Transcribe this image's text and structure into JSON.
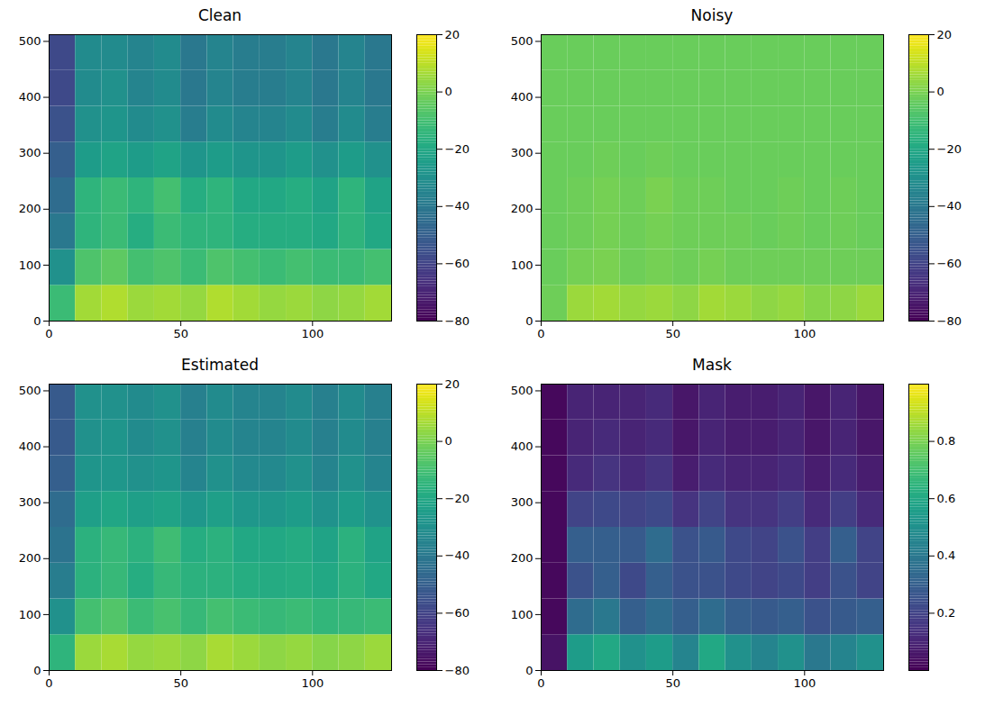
{
  "chart_data": [
    {
      "type": "heatmap",
      "title": "Clean",
      "color": "viridis",
      "xlim": [
        0,
        130
      ],
      "ylim": [
        0,
        512
      ],
      "xticks": [
        0,
        50,
        100
      ],
      "yticks": [
        0,
        100,
        200,
        300,
        400,
        500
      ],
      "x_edges": [
        0,
        10,
        20,
        30,
        40,
        50,
        60,
        70,
        80,
        90,
        100,
        110,
        120,
        130
      ],
      "y_edges": [
        0,
        64,
        128,
        192,
        256,
        320,
        384,
        448,
        512
      ],
      "cells": [
        [
          -12,
          6,
          8,
          5,
          6,
          4,
          8,
          6,
          4,
          5,
          3,
          4,
          6
        ],
        [
          -30,
          -8,
          -5,
          -10,
          -8,
          -12,
          -8,
          -10,
          -12,
          -10,
          -12,
          -12,
          -10
        ],
        [
          -40,
          -15,
          -12,
          -18,
          -12,
          -15,
          -15,
          -18,
          -18,
          -18,
          -20,
          -15,
          -20
        ],
        [
          -45,
          -15,
          -12,
          -15,
          -10,
          -18,
          -15,
          -20,
          -20,
          -18,
          -22,
          -15,
          -22
        ],
        [
          -50,
          -25,
          -22,
          -25,
          -22,
          -28,
          -25,
          -28,
          -28,
          -25,
          -30,
          -25,
          -30
        ],
        [
          -55,
          -30,
          -28,
          -32,
          -30,
          -38,
          -32,
          -35,
          -35,
          -32,
          -38,
          -32,
          -38
        ],
        [
          -58,
          -32,
          -30,
          -35,
          -32,
          -40,
          -35,
          -38,
          -38,
          -35,
          -40,
          -35,
          -40
        ],
        [
          -58,
          -32,
          -32,
          -35,
          -32,
          -40,
          -35,
          -38,
          -38,
          -35,
          -40,
          -35,
          -40
        ]
      ],
      "colorbar": {
        "range": [
          -80,
          20
        ],
        "ticks": [
          20,
          0,
          -20,
          -40,
          -60,
          -80
        ]
      }
    },
    {
      "type": "heatmap",
      "title": "Noisy",
      "color": "viridis",
      "xlim": [
        0,
        130
      ],
      "ylim": [
        0,
        512
      ],
      "xticks": [
        0,
        50,
        100
      ],
      "yticks": [
        0,
        100,
        200,
        300,
        400,
        500
      ],
      "x_edges": [
        0,
        10,
        20,
        30,
        40,
        50,
        60,
        70,
        80,
        90,
        100,
        110,
        120,
        130
      ],
      "y_edges": [
        0,
        64,
        128,
        192,
        256,
        320,
        384,
        448,
        512
      ],
      "cells": [
        [
          -2,
          5,
          6,
          4,
          5,
          3,
          6,
          5,
          3,
          4,
          2,
          3,
          5
        ],
        [
          -3,
          -1,
          0,
          -2,
          -1,
          -2,
          -1,
          -2,
          -2,
          -2,
          -2,
          -2,
          -2
        ],
        [
          -3,
          -2,
          -1,
          -2,
          -1,
          -2,
          -2,
          -2,
          -3,
          -2,
          -3,
          -2,
          -3
        ],
        [
          -3,
          -2,
          -1,
          -2,
          0,
          -2,
          -2,
          -3,
          -3,
          -2,
          -3,
          -2,
          -3
        ],
        [
          -3,
          -3,
          -2,
          -3,
          -2,
          -3,
          -3,
          -3,
          -3,
          -3,
          -3,
          -3,
          -3
        ],
        [
          -3,
          -3,
          -3,
          -3,
          -3,
          -3,
          -3,
          -3,
          -3,
          -3,
          -3,
          -3,
          -3
        ],
        [
          -3,
          -3,
          -3,
          -3,
          -3,
          -3,
          -3,
          -3,
          -3,
          -3,
          -3,
          -3,
          -3
        ],
        [
          -3,
          -3,
          -3,
          -3,
          -3,
          -3,
          -3,
          -3,
          -3,
          -3,
          -3,
          -3,
          -3
        ]
      ],
      "colorbar": {
        "range": [
          -80,
          20
        ],
        "ticks": [
          20,
          0,
          -20,
          -40,
          -60,
          -80
        ]
      }
    },
    {
      "type": "heatmap",
      "title": "Estimated",
      "color": "viridis",
      "xlim": [
        0,
        130
      ],
      "ylim": [
        0,
        512
      ],
      "xticks": [
        0,
        50,
        100
      ],
      "yticks": [
        0,
        100,
        200,
        300,
        400,
        500
      ],
      "x_edges": [
        0,
        10,
        20,
        30,
        40,
        50,
        60,
        70,
        80,
        90,
        100,
        110,
        120,
        130
      ],
      "y_edges": [
        0,
        64,
        128,
        192,
        256,
        320,
        384,
        448,
        512
      ],
      "cells": [
        [
          -15,
          5,
          7,
          4,
          5,
          3,
          7,
          5,
          3,
          4,
          2,
          3,
          5
        ],
        [
          -30,
          -10,
          -7,
          -12,
          -9,
          -13,
          -10,
          -12,
          -13,
          -12,
          -14,
          -13,
          -12
        ],
        [
          -38,
          -16,
          -13,
          -18,
          -13,
          -16,
          -16,
          -18,
          -19,
          -18,
          -20,
          -16,
          -20
        ],
        [
          -42,
          -16,
          -13,
          -16,
          -11,
          -18,
          -16,
          -20,
          -20,
          -19,
          -22,
          -16,
          -22
        ],
        [
          -45,
          -24,
          -21,
          -24,
          -22,
          -27,
          -24,
          -27,
          -27,
          -25,
          -29,
          -25,
          -29
        ],
        [
          -50,
          -28,
          -27,
          -30,
          -28,
          -35,
          -30,
          -33,
          -33,
          -30,
          -35,
          -30,
          -35
        ],
        [
          -52,
          -30,
          -28,
          -32,
          -30,
          -37,
          -32,
          -35,
          -35,
          -32,
          -37,
          -32,
          -37
        ],
        [
          -52,
          -30,
          -30,
          -32,
          -30,
          -37,
          -32,
          -35,
          -35,
          -32,
          -37,
          -32,
          -37
        ]
      ],
      "colorbar": {
        "range": [
          -80,
          20
        ],
        "ticks": [
          20,
          0,
          -20,
          -40,
          -60,
          -80
        ]
      }
    },
    {
      "type": "heatmap",
      "title": "Mask",
      "color": "viridis",
      "xlim": [
        0,
        130
      ],
      "ylim": [
        0,
        512
      ],
      "xticks": [
        0,
        50,
        100
      ],
      "yticks": [
        0,
        100,
        200,
        300,
        400,
        500
      ],
      "x_edges": [
        0,
        10,
        20,
        30,
        40,
        50,
        60,
        70,
        80,
        90,
        100,
        110,
        120,
        130
      ],
      "y_edges": [
        0,
        64,
        128,
        192,
        256,
        320,
        384,
        448,
        512
      ],
      "cells": [
        [
          0.05,
          0.55,
          0.6,
          0.5,
          0.55,
          0.45,
          0.6,
          0.5,
          0.45,
          0.5,
          0.4,
          0.45,
          0.5
        ],
        [
          0.02,
          0.35,
          0.4,
          0.3,
          0.35,
          0.3,
          0.35,
          0.3,
          0.28,
          0.3,
          0.25,
          0.28,
          0.3
        ],
        [
          0.02,
          0.25,
          0.3,
          0.22,
          0.3,
          0.25,
          0.25,
          0.22,
          0.2,
          0.22,
          0.18,
          0.25,
          0.2
        ],
        [
          0.02,
          0.3,
          0.3,
          0.28,
          0.35,
          0.25,
          0.28,
          0.22,
          0.2,
          0.25,
          0.18,
          0.3,
          0.2
        ],
        [
          0.02,
          0.2,
          0.22,
          0.2,
          0.22,
          0.15,
          0.2,
          0.15,
          0.15,
          0.18,
          0.12,
          0.18,
          0.12
        ],
        [
          0.02,
          0.12,
          0.15,
          0.12,
          0.15,
          0.08,
          0.12,
          0.1,
          0.1,
          0.12,
          0.08,
          0.12,
          0.08
        ],
        [
          0.02,
          0.1,
          0.12,
          0.1,
          0.12,
          0.06,
          0.1,
          0.08,
          0.08,
          0.1,
          0.06,
          0.1,
          0.06
        ],
        [
          0.02,
          0.1,
          0.1,
          0.1,
          0.12,
          0.06,
          0.1,
          0.08,
          0.08,
          0.1,
          0.06,
          0.1,
          0.06
        ]
      ],
      "colorbar": {
        "range": [
          0,
          1
        ],
        "ticks": [
          0.2,
          0.4,
          0.6,
          0.8
        ]
      }
    }
  ]
}
